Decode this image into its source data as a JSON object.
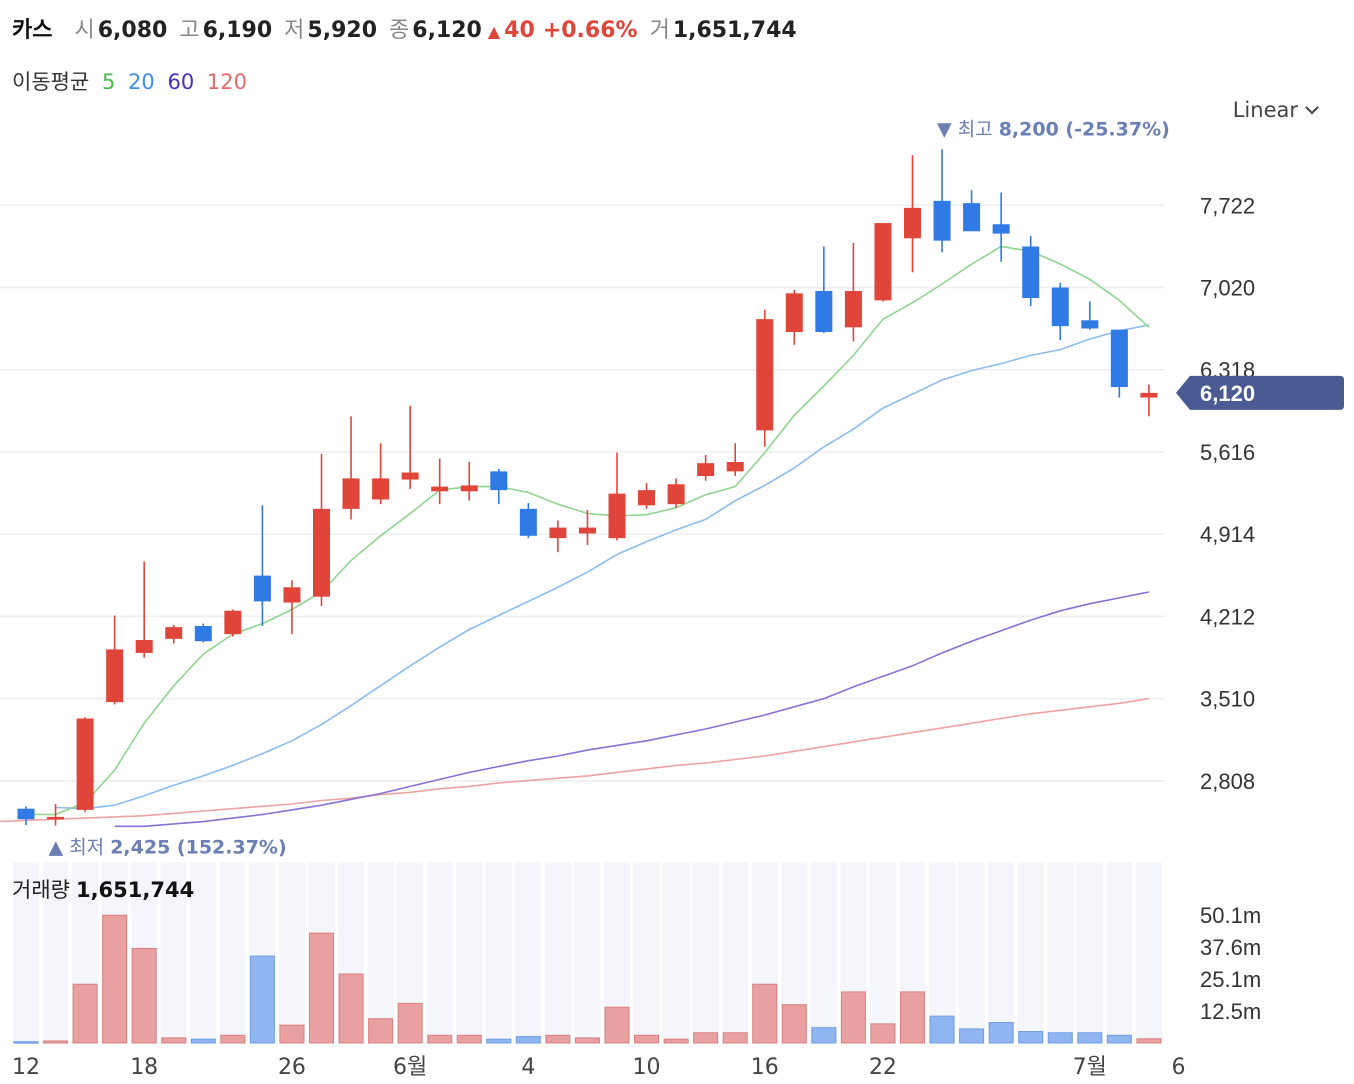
{
  "header": {
    "name": "카스",
    "open_label": "시",
    "open": "6,080",
    "high_label": "고",
    "high": "6,190",
    "low_label": "저",
    "low": "5,920",
    "close_label": "종",
    "close": "6,120",
    "change_icon": "▲",
    "change": "40",
    "change_pct": "+0.66%",
    "volume_label": "거",
    "volume": "1,651,744"
  },
  "ma_legend": {
    "label": "이동평균",
    "items": [
      {
        "text": "5",
        "color": "#4cb84c"
      },
      {
        "text": "20",
        "color": "#3b8fe8"
      },
      {
        "text": "60",
        "color": "#4a2fc0"
      },
      {
        "text": "120",
        "color": "#e56a6a"
      }
    ]
  },
  "scale_selector": {
    "label": "Linear",
    "icon": "chevron-down-icon"
  },
  "volume_panel": {
    "label": "거래량",
    "value": "1,651,744"
  },
  "colors": {
    "up": "#e0453a",
    "down": "#2f7ae5",
    "vol_up": "#e8a0a0",
    "vol_down": "#8fb6f0",
    "current_badge": "#4a5a93",
    "annotation": "#6b7fb5"
  },
  "chart_data": {
    "type": "candlestick",
    "x_tick_labels": [
      {
        "index": 0,
        "label": "12"
      },
      {
        "index": 4,
        "label": "18"
      },
      {
        "index": 9,
        "label": "26"
      },
      {
        "index": 13,
        "label": "6월"
      },
      {
        "index": 17,
        "label": "4"
      },
      {
        "index": 21,
        "label": "10"
      },
      {
        "index": 25,
        "label": "16"
      },
      {
        "index": 29,
        "label": "22"
      },
      {
        "index": 36,
        "label": "7월"
      },
      {
        "index": 39,
        "label": "6"
      }
    ],
    "y_ticks": [
      2808,
      3510,
      4212,
      4914,
      5616,
      6318,
      7020,
      7722
    ],
    "ylim": [
      2260,
      8450
    ],
    "volume_ticks": [
      {
        "value": 12.5,
        "label": "12.5m"
      },
      {
        "value": 25.1,
        "label": "25.1m"
      },
      {
        "value": 37.6,
        "label": "37.6m"
      },
      {
        "value": 50.1,
        "label": "50.1m"
      }
    ],
    "volume_max": 54,
    "candles": [
      {
        "o": 2570,
        "h": 2590,
        "l": 2430,
        "c": 2480,
        "v": 0.5
      },
      {
        "o": 2480,
        "h": 2610,
        "l": 2425,
        "c": 2500,
        "v": 0.8
      },
      {
        "o": 2560,
        "h": 3350,
        "l": 2540,
        "c": 3340,
        "v": 23
      },
      {
        "o": 3480,
        "h": 4220,
        "l": 3460,
        "c": 3930,
        "v": 50
      },
      {
        "o": 3900,
        "h": 4680,
        "l": 3860,
        "c": 4010,
        "v": 37
      },
      {
        "o": 4020,
        "h": 4140,
        "l": 3980,
        "c": 4120,
        "v": 2
      },
      {
        "o": 4130,
        "h": 4150,
        "l": 3990,
        "c": 4000,
        "v": 1.5
      },
      {
        "o": 4060,
        "h": 4270,
        "l": 4040,
        "c": 4260,
        "v": 3
      },
      {
        "o": 4560,
        "h": 5160,
        "l": 4130,
        "c": 4340,
        "v": 34
      },
      {
        "o": 4330,
        "h": 4520,
        "l": 4060,
        "c": 4460,
        "v": 7
      },
      {
        "o": 4380,
        "h": 5600,
        "l": 4300,
        "c": 5130,
        "v": 43
      },
      {
        "o": 5130,
        "h": 5920,
        "l": 5040,
        "c": 5390,
        "v": 27
      },
      {
        "o": 5210,
        "h": 5690,
        "l": 5170,
        "c": 5390,
        "v": 9.5
      },
      {
        "o": 5380,
        "h": 6010,
        "l": 5300,
        "c": 5440,
        "v": 15.5
      },
      {
        "o": 5280,
        "h": 5560,
        "l": 5170,
        "c": 5320,
        "v": 3
      },
      {
        "o": 5280,
        "h": 5530,
        "l": 5200,
        "c": 5330,
        "v": 3
      },
      {
        "o": 5450,
        "h": 5470,
        "l": 5170,
        "c": 5290,
        "v": 1.5
      },
      {
        "o": 5130,
        "h": 5180,
        "l": 4880,
        "c": 4900,
        "v": 2.5
      },
      {
        "o": 4880,
        "h": 5030,
        "l": 4760,
        "c": 4970,
        "v": 3
      },
      {
        "o": 4920,
        "h": 5120,
        "l": 4820,
        "c": 4970,
        "v": 2
      },
      {
        "o": 4880,
        "h": 5610,
        "l": 4860,
        "c": 5260,
        "v": 14
      },
      {
        "o": 5160,
        "h": 5350,
        "l": 5130,
        "c": 5290,
        "v": 3
      },
      {
        "o": 5170,
        "h": 5390,
        "l": 5140,
        "c": 5340,
        "v": 1.5
      },
      {
        "o": 5410,
        "h": 5590,
        "l": 5370,
        "c": 5520,
        "v": 4
      },
      {
        "o": 5450,
        "h": 5690,
        "l": 5410,
        "c": 5530,
        "v": 4
      },
      {
        "o": 5800,
        "h": 6830,
        "l": 5660,
        "c": 6750,
        "v": 23
      },
      {
        "o": 6640,
        "h": 7000,
        "l": 6530,
        "c": 6970,
        "v": 15
      },
      {
        "o": 6990,
        "h": 7370,
        "l": 6630,
        "c": 6640,
        "v": 6
      },
      {
        "o": 6680,
        "h": 7400,
        "l": 6560,
        "c": 6990,
        "v": 20
      },
      {
        "o": 6910,
        "h": 7570,
        "l": 6900,
        "c": 7570,
        "v": 7.5
      },
      {
        "o": 7440,
        "h": 8150,
        "l": 7150,
        "c": 7700,
        "v": 20
      },
      {
        "o": 7760,
        "h": 8200,
        "l": 7320,
        "c": 7420,
        "v": 10.5
      },
      {
        "o": 7740,
        "h": 7850,
        "l": 7510,
        "c": 7500,
        "v": 5.5
      },
      {
        "o": 7560,
        "h": 7830,
        "l": 7240,
        "c": 7480,
        "v": 8
      },
      {
        "o": 7370,
        "h": 7460,
        "l": 6860,
        "c": 6930,
        "v": 4.5
      },
      {
        "o": 7020,
        "h": 7060,
        "l": 6570,
        "c": 6690,
        "v": 4
      },
      {
        "o": 6740,
        "h": 6900,
        "l": 6660,
        "c": 6670,
        "v": 4
      },
      {
        "o": 6660,
        "h": 6660,
        "l": 6080,
        "c": 6170,
        "v": 3
      },
      {
        "o": 6080,
        "h": 6190,
        "l": 5920,
        "c": 6120,
        "v": 1.65
      }
    ],
    "ma5": [
      2520,
      2520,
      2620,
      2900,
      3300,
      3620,
      3890,
      4060,
      4150,
      4270,
      4420,
      4690,
      4900,
      5090,
      5290,
      5320,
      5320,
      5270,
      5170,
      5090,
      5070,
      5080,
      5140,
      5250,
      5320,
      5610,
      5930,
      6180,
      6440,
      6750,
      6890,
      7050,
      7220,
      7370,
      7330,
      7220,
      7090,
      6910,
      6680
    ],
    "ma20": [
      2580,
      2570,
      2600,
      2680,
      2770,
      2850,
      2940,
      3040,
      3150,
      3290,
      3450,
      3620,
      3790,
      3950,
      4100,
      4220,
      4340,
      4460,
      4590,
      4740,
      4850,
      4950,
      5040,
      5200,
      5330,
      5480,
      5660,
      5810,
      5990,
      6110,
      6230,
      6310,
      6370,
      6440,
      6490,
      6580,
      6650,
      6700
    ],
    "ma60": [
      2420,
      2420,
      2440,
      2460,
      2490,
      2520,
      2560,
      2600,
      2650,
      2700,
      2760,
      2820,
      2880,
      2930,
      2980,
      3020,
      3070,
      3110,
      3150,
      3200,
      3250,
      3310,
      3370,
      3440,
      3510,
      3610,
      3700,
      3790,
      3900,
      4000,
      4090,
      4180,
      4260,
      4320,
      4370,
      4420
    ],
    "ma120": [
      2460,
      2470,
      2480,
      2490,
      2500,
      2510,
      2530,
      2550,
      2570,
      2590,
      2610,
      2640,
      2660,
      2690,
      2710,
      2740,
      2760,
      2790,
      2810,
      2830,
      2850,
      2880,
      2910,
      2940,
      2960,
      2990,
      3020,
      3060,
      3100,
      3140,
      3180,
      3220,
      3260,
      3300,
      3340,
      3380,
      3410,
      3440,
      3470,
      3510
    ],
    "high_annotation": {
      "icon": "▼",
      "label": "최고",
      "value": "8,200 (-25.37%)"
    },
    "low_annotation": {
      "icon": "▲",
      "label": "최저",
      "value": "2,425 (152.37%)"
    },
    "current_price": {
      "value": 6120,
      "label": "6,120"
    }
  }
}
